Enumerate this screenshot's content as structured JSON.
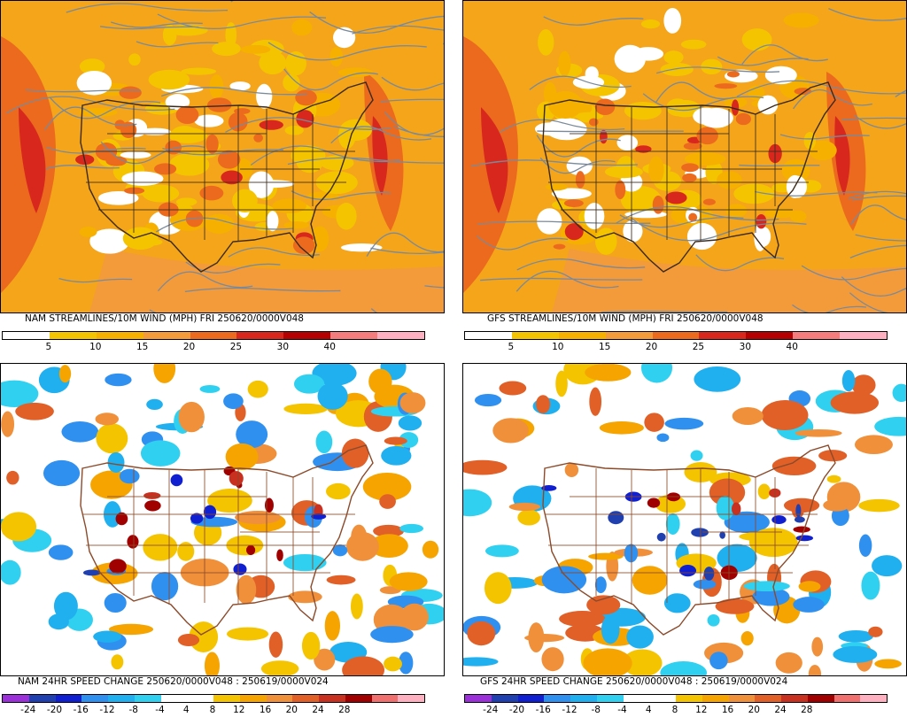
{
  "panels": [
    {
      "id": "nam-streamlines",
      "title": "NAM STREAMLINES/10M WIND (MPH)  FRI 250620/0000V048",
      "kind": "speed",
      "tick_labels": [
        "5",
        "10",
        "15",
        "20",
        "25",
        "30",
        "40"
      ]
    },
    {
      "id": "gfs-streamlines",
      "title": "GFS STREAMLINES/10M WIND (MPH)  FRI 250620/0000V048",
      "kind": "speed",
      "tick_labels": [
        "5",
        "10",
        "15",
        "20",
        "25",
        "30",
        "40"
      ]
    },
    {
      "id": "nam-change",
      "title": "NAM 24HR SPEED CHANGE 250620/0000V048 : 250619/0000V024",
      "kind": "change",
      "tick_labels": [
        "-24",
        "-20",
        "-16",
        "-12",
        "-8",
        "-4",
        "4",
        "8",
        "12",
        "16",
        "20",
        "24",
        "28"
      ]
    },
    {
      "id": "gfs-change",
      "title": "GFS 24HR SPEED CHANGE 250620/0000V048 : 250619/0000V024",
      "kind": "change",
      "tick_labels": [
        "-24",
        "-20",
        "-16",
        "-12",
        "-8",
        "-4",
        "4",
        "8",
        "12",
        "16",
        "20",
        "24",
        "28"
      ]
    }
  ],
  "colors": {
    "speed_scale": [
      "#ffffff",
      "#f5c400",
      "#f5b000",
      "#f39a3a",
      "#ec6a1e",
      "#d8281e",
      "#b40000",
      "#f57c7c",
      "#ffb0c0"
    ],
    "change_scale": [
      "#9b30d8",
      "#2040b0",
      "#1020d0",
      "#3090f0",
      "#20b0f0",
      "#30d0f0",
      "#ffffff",
      "#ffffff",
      "#f5c400",
      "#f5a400",
      "#f0903a",
      "#e06028",
      "#c83020",
      "#a00000",
      "#f07070",
      "#ffb0c0"
    ],
    "borders_speed": "#3a2a1a",
    "borders_change": "#8b4a2a",
    "streamlines": "#7a8a9a"
  }
}
